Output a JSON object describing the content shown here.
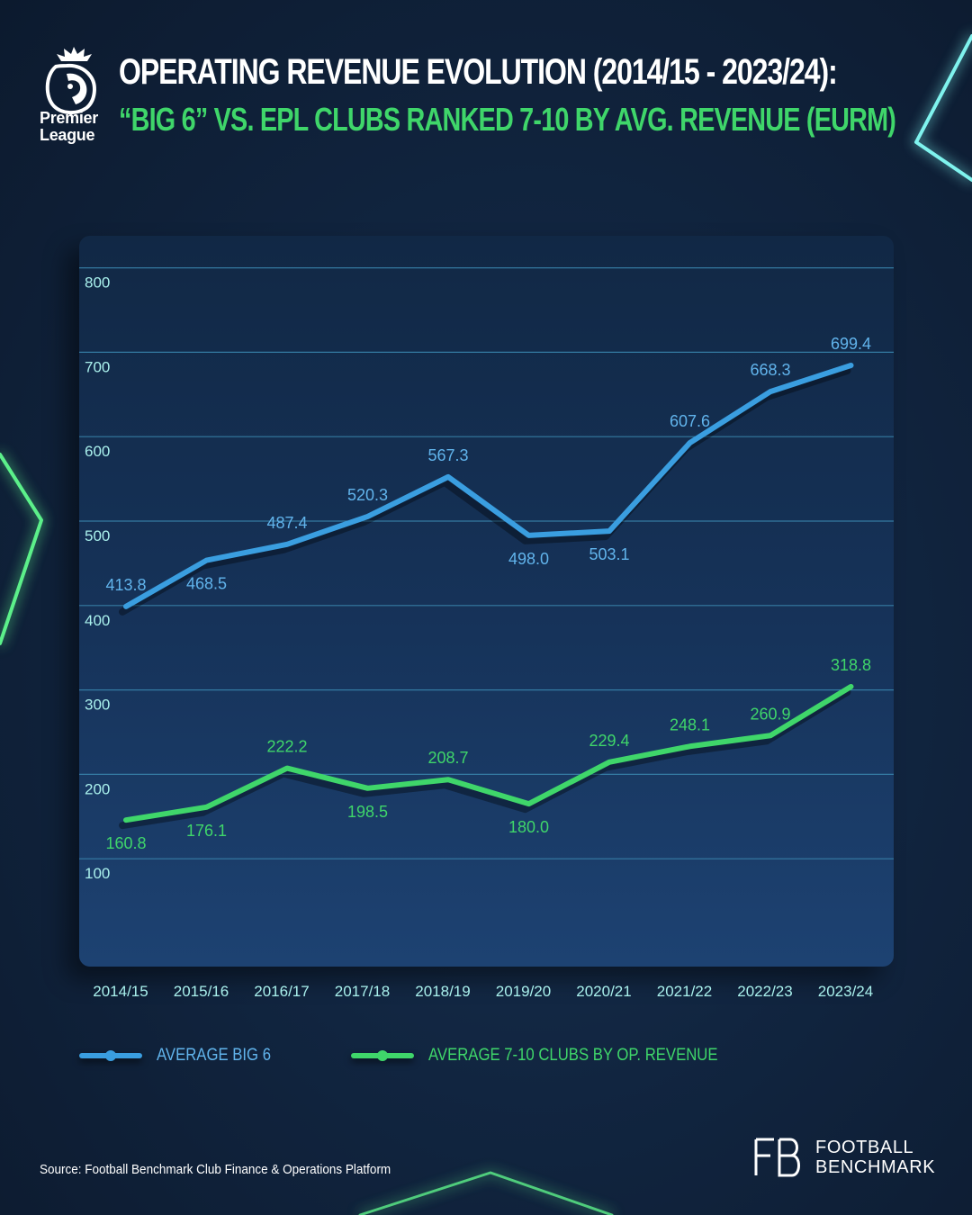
{
  "header": {
    "logo_line1": "Premier",
    "logo_line2": "League",
    "title_line1": "OPERATING REVENUE EVOLUTION (2014/15 - 2023/24):",
    "title_line2": "“BIG 6” VS. EPL CLUBS RANKED 7-10 BY AVG. REVENUE (EURM)"
  },
  "colors": {
    "big6": "#3a9ee0",
    "big6_label": "#61b4ec",
    "clubs_7_10": "#3fd66a",
    "grid": "#3b88b0",
    "tick_label": "#a9f0ec",
    "x_label": "#a9f0ec"
  },
  "chart_data": {
    "type": "line",
    "categories": [
      "2014/15",
      "2015/16",
      "2016/17",
      "2017/18",
      "2018/19",
      "2019/20",
      "2020/21",
      "2021/22",
      "2022/23",
      "2023/24"
    ],
    "series": [
      {
        "name": "AVERAGE BIG 6",
        "values": [
          413.8,
          468.5,
          487.4,
          520.3,
          567.3,
          498.0,
          503.1,
          607.6,
          668.3,
          699.4
        ]
      },
      {
        "name": "AVERAGE 7-10 CLUBS BY OP. REVENUE",
        "values": [
          160.8,
          176.1,
          222.2,
          198.5,
          208.7,
          180.0,
          229.4,
          248.1,
          260.9,
          318.8
        ]
      }
    ],
    "yticks": [
      100,
      200,
      300,
      400,
      500,
      600,
      700,
      800
    ],
    "ylim": [
      0,
      800
    ],
    "grid": true,
    "legend_position": "bottom-left"
  },
  "footer": {
    "source": "Source: Football Benchmark Club Finance & Operations Platform",
    "brand_line1": "FOOTBALL",
    "brand_line2": "BENCHMARK"
  }
}
